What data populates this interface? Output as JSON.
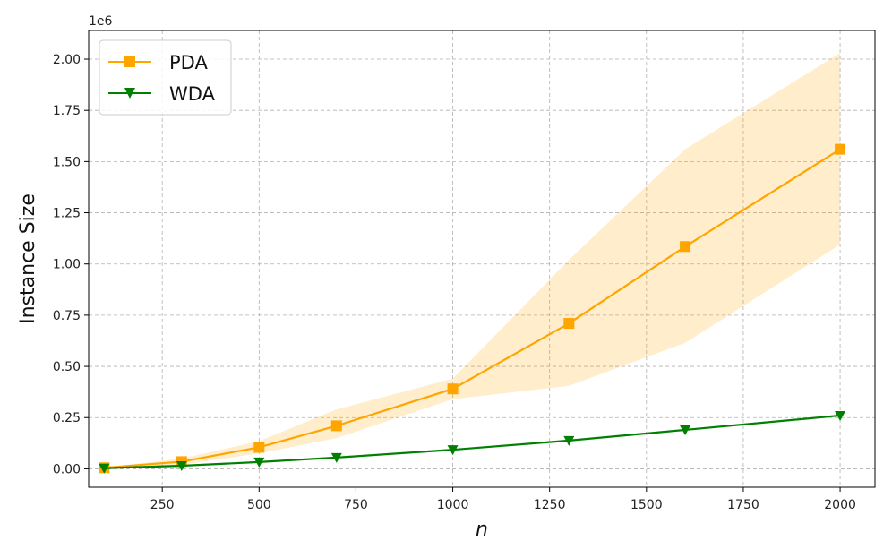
{
  "chart_data": {
    "type": "line",
    "title": "",
    "xlabel": "n",
    "ylabel": "Instance Size",
    "y_offset_label": "1e6",
    "xlim": [
      60,
      2090
    ],
    "ylim": [
      -0.09,
      2.14
    ],
    "xticks": [
      250,
      500,
      750,
      1000,
      1250,
      1500,
      1750,
      2000
    ],
    "xtick_labels": [
      "250",
      "500",
      "750",
      "1000",
      "1250",
      "1500",
      "1750",
      "2000"
    ],
    "yticks": [
      0.0,
      0.25,
      0.5,
      0.75,
      1.0,
      1.25,
      1.5,
      1.75,
      2.0
    ],
    "ytick_labels": [
      "0.00",
      "0.25",
      "0.50",
      "0.75",
      "1.00",
      "1.25",
      "1.50",
      "1.75",
      "2.00"
    ],
    "grid": true,
    "legend_position": "top-left",
    "x": [
      100,
      300,
      500,
      700,
      1000,
      1300,
      1600,
      2000
    ],
    "series": [
      {
        "name": "PDA",
        "color": "#ffa500",
        "marker": "square",
        "values": [
          0.005,
          0.035,
          0.105,
          0.21,
          0.39,
          0.71,
          1.085,
          1.56
        ],
        "band_lower": [
          0.003,
          0.02,
          0.075,
          0.15,
          0.34,
          0.405,
          0.615,
          1.095
        ],
        "band_upper": [
          0.007,
          0.05,
          0.135,
          0.29,
          0.44,
          1.02,
          1.56,
          2.03
        ]
      },
      {
        "name": "WDA",
        "color": "#008000",
        "marker": "triangle-down",
        "values": [
          0.003,
          0.015,
          0.033,
          0.055,
          0.093,
          0.138,
          0.19,
          0.26
        ]
      }
    ]
  }
}
